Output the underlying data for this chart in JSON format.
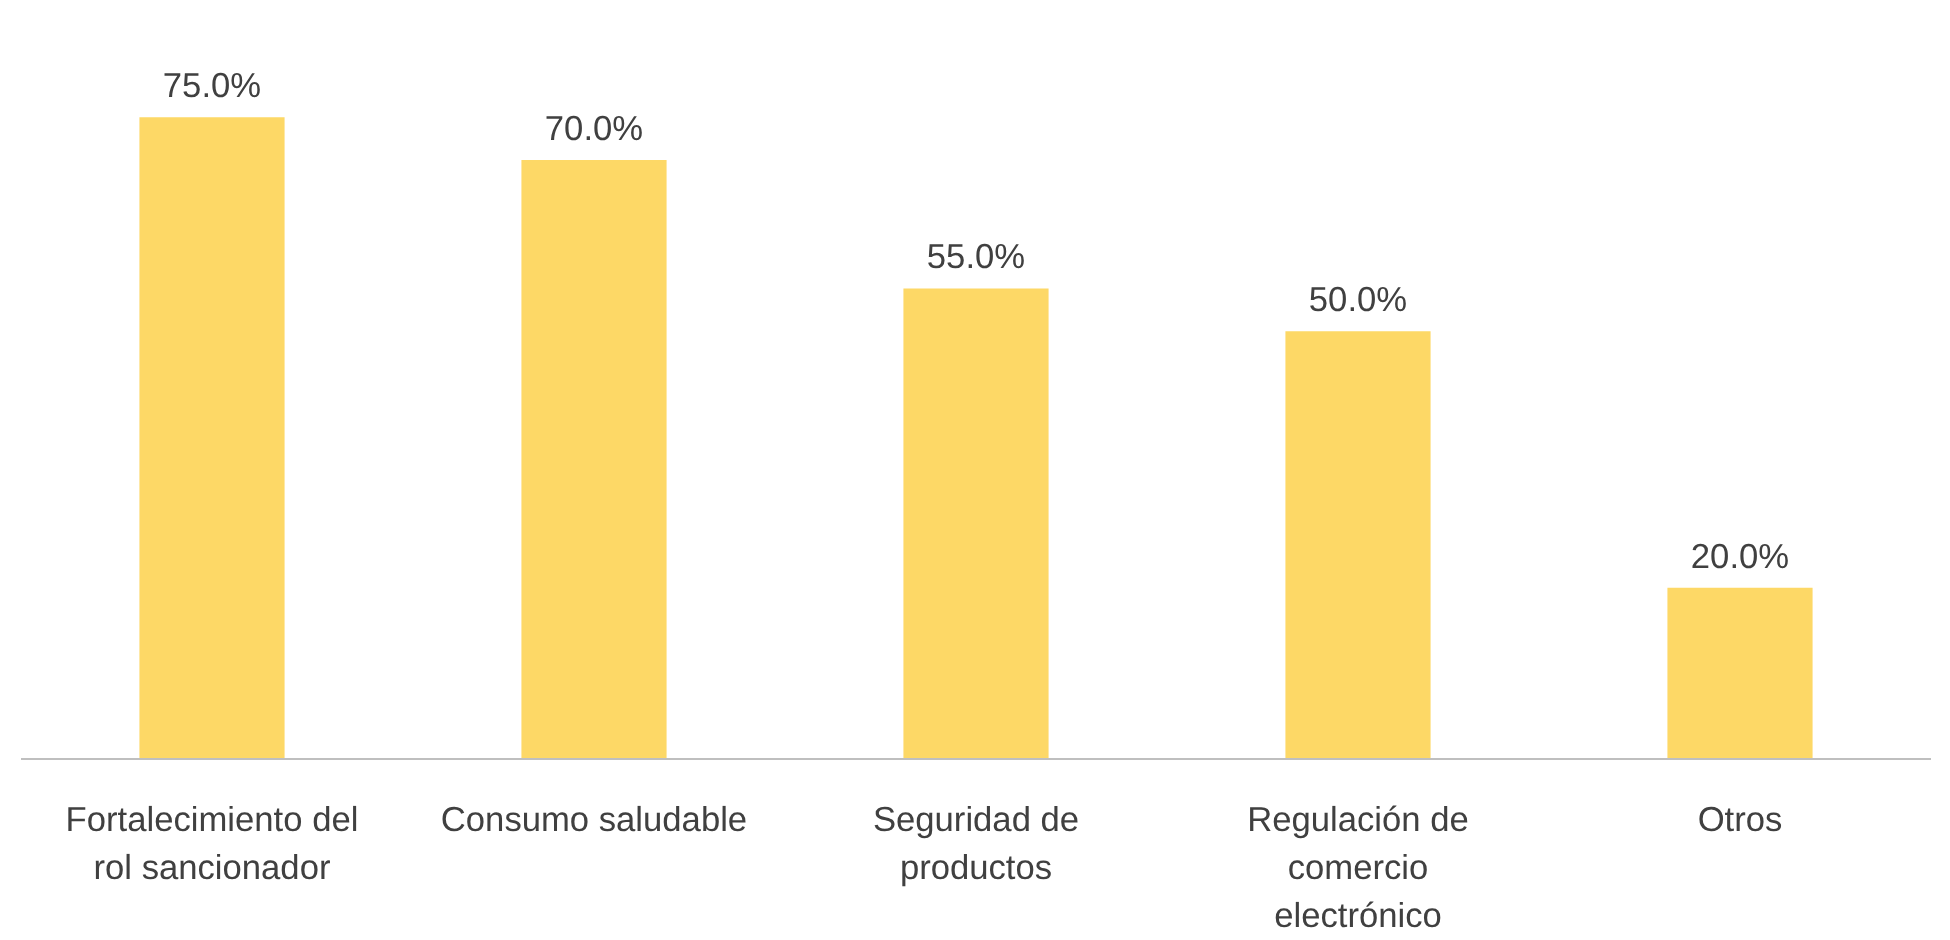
{
  "chart_data": {
    "type": "bar",
    "categories": [
      "Fortalecimiento del rol sancionador",
      "Consumo saludable",
      "Seguridad de productos",
      "Regulación de comercio electrónico",
      "Otros"
    ],
    "values": [
      75,
      70,
      55,
      50,
      20
    ],
    "value_labels": [
      "75.0%",
      "70.0%",
      "55.0%",
      "50.0%",
      "20.0%"
    ],
    "color": "#fdd866",
    "tick_labels": "x",
    "grid": false
  }
}
